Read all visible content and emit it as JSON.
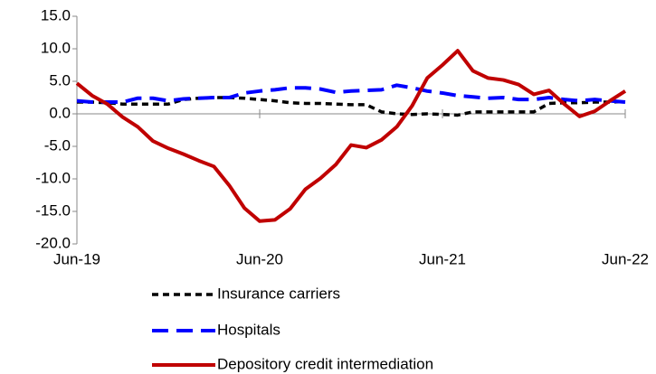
{
  "chart_data": {
    "type": "line",
    "categories": [
      "Jun-19",
      null,
      null,
      null,
      null,
      null,
      null,
      null,
      null,
      null,
      null,
      null,
      "Jun-20",
      null,
      null,
      null,
      null,
      null,
      null,
      null,
      null,
      null,
      null,
      null,
      "Jun-21",
      null,
      null,
      null,
      null,
      null,
      null,
      null,
      null,
      null,
      null,
      null,
      "Jun-22"
    ],
    "series": [
      {
        "name": "Insurance carriers",
        "color": "#000000",
        "dash": "7,5",
        "values": [
          1.8,
          1.8,
          1.7,
          1.5,
          1.5,
          1.5,
          1.5,
          2.2,
          2.4,
          2.5,
          2.5,
          2.4,
          2.2,
          2.0,
          1.7,
          1.6,
          1.6,
          1.5,
          1.4,
          1.4,
          0.3,
          0.0,
          -0.1,
          0.0,
          -0.1,
          -0.2,
          0.3,
          0.3,
          0.3,
          0.3,
          0.3,
          1.6,
          1.7,
          1.7,
          1.8,
          1.8,
          1.9
        ]
      },
      {
        "name": "Hospitals",
        "color": "#0000ff",
        "dash": "18,9",
        "values": [
          2.0,
          1.8,
          1.8,
          1.8,
          2.4,
          2.4,
          2.0,
          2.3,
          2.4,
          2.5,
          2.5,
          3.2,
          3.5,
          3.7,
          4.0,
          4.0,
          3.8,
          3.3,
          3.5,
          3.6,
          3.7,
          4.4,
          4.0,
          3.5,
          3.2,
          2.8,
          2.6,
          2.4,
          2.5,
          2.2,
          2.2,
          2.5,
          2.2,
          2.0,
          2.2,
          2.0,
          1.8
        ]
      },
      {
        "name": "Depository credit intermediation",
        "color": "#c00000",
        "dash": "none",
        "values": [
          4.7,
          2.8,
          1.5,
          -0.5,
          -2.0,
          -4.2,
          -5.3,
          -6.2,
          -7.2,
          -8.1,
          -11.0,
          -14.5,
          -16.5,
          -16.3,
          -14.6,
          -11.6,
          -9.9,
          -7.8,
          -4.8,
          -5.2,
          -4.0,
          -2.0,
          1.2,
          5.5,
          7.5,
          9.7,
          6.6,
          5.5,
          5.2,
          4.5,
          3.0,
          3.6,
          1.5,
          -0.4,
          0.4,
          2.0,
          3.5
        ]
      }
    ],
    "ylim": [
      -20,
      15
    ],
    "yticks": [
      {
        "value": -20,
        "label": "-20.0"
      },
      {
        "value": -15,
        "label": "-15.0"
      },
      {
        "value": -10,
        "label": "-10.0"
      },
      {
        "value": -5,
        "label": "-5.0"
      },
      {
        "value": 0,
        "label": "0.0"
      },
      {
        "value": 5,
        "label": "5.0"
      },
      {
        "value": 10,
        "label": "10.0"
      },
      {
        "value": 15,
        "label": "15.0"
      }
    ],
    "grid": false,
    "legend": "bottom"
  }
}
